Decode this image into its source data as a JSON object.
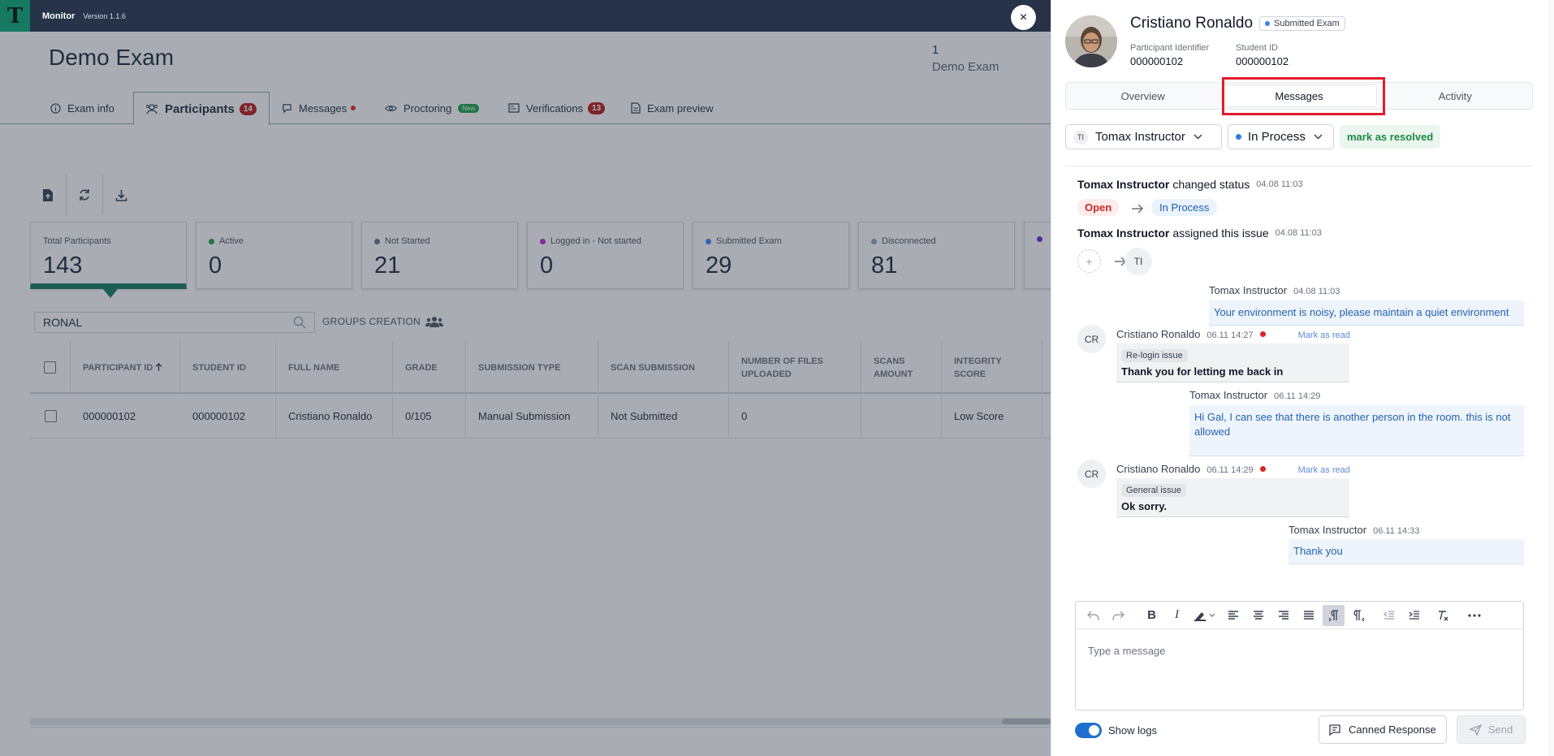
{
  "app": {
    "name": "Monitor",
    "version": "Version 1.1.6",
    "logo_letter": "T"
  },
  "exam": {
    "title": "Demo Exam",
    "number": "1",
    "subtitle": "Demo Exam"
  },
  "tabs": [
    {
      "label": "Exam info",
      "icon": "info-icon"
    },
    {
      "label": "Participants",
      "icon": "participants-icon",
      "badge": "14"
    },
    {
      "label": "Messages",
      "icon": "chat-icon",
      "dot": true
    },
    {
      "label": "Proctoring",
      "icon": "eye-icon",
      "badge": "New"
    },
    {
      "label": "Verifications",
      "icon": "id-card-icon",
      "badge": "13"
    },
    {
      "label": "Exam preview",
      "icon": "document-icon"
    }
  ],
  "toolbar": [
    "file-upload-icon",
    "refresh-icon",
    "download-icon"
  ],
  "cards": [
    {
      "label": "Total Participants",
      "value": "143"
    },
    {
      "label": "Active",
      "value": "0",
      "color": "#22a04b"
    },
    {
      "label": "Not Started",
      "value": "21",
      "color": "#6b7280"
    },
    {
      "label": "Logged in - Not started",
      "value": "0",
      "color": "#c026d3"
    },
    {
      "label": "Submitted Exam",
      "value": "29",
      "color": "#3b82f6"
    },
    {
      "label": "Disconnected",
      "value": "81",
      "color": "#8aa0c8"
    }
  ],
  "search": {
    "value": "RONAL",
    "groups_label": "GROUPS CREATION"
  },
  "table": {
    "headers": [
      "PARTICIPANT ID",
      "STUDENT ID",
      "FULL NAME",
      "GRADE",
      "SUBMISSION TYPE",
      "SCAN SUBMISSION",
      "NUMBER OF FILES UPLOADED",
      "SCANS AMOUNT",
      "INTEGRITY SCORE"
    ],
    "rows": [
      [
        "000000102",
        "000000102",
        "Cristiano Ronaldo",
        "0/105",
        "Manual Submission",
        "Not Submitted",
        "0",
        "",
        "Low Score"
      ]
    ]
  },
  "panel": {
    "name": "Cristiano Ronaldo",
    "status": "Submitted Exam",
    "participant_identifier_label": "Participant Identifier",
    "participant_identifier": "000000102",
    "student_id_label": "Student ID",
    "student_id": "000000102",
    "tabs": [
      "Overview",
      "Messages",
      "Activity"
    ],
    "assignee": {
      "initials": "TI",
      "name": "Tomax Instructor"
    },
    "state": "In Process",
    "resolve_label": "mark as resolved",
    "logs": [
      {
        "actor": "Tomax Instructor",
        "action": "changed status",
        "time": "04.08 11:03",
        "from": "Open",
        "to": "In Process"
      },
      {
        "actor": "Tomax Instructor",
        "action": "assigned this issue",
        "time": "04.08 11:03",
        "to_initials": "TI"
      }
    ],
    "messages": [
      {
        "author": "Tomax Instructor",
        "time": "04.08 11:03",
        "text": "Your environment is noisy, please maintain a quiet environment"
      },
      {
        "author": "Cristiano Ronaldo",
        "initials": "CR",
        "time": "06.11 14:27",
        "tag": "Re-login issue",
        "text": "Thank you for letting me back in",
        "mark": "Mark as read"
      },
      {
        "author": "Tomax Instructor",
        "time": "06.11 14:29",
        "text": "Hi Gal, I can see that there is another person in the room. this is not allowed"
      },
      {
        "author": "Cristiano Ronaldo",
        "initials": "CR",
        "time": "06.11 14:29",
        "tag": "General issue",
        "text": "Ok sorry.",
        "mark": "Mark as read"
      },
      {
        "author": "Tomax Instructor",
        "time": "06.11 14:33",
        "text": "Thank you"
      }
    ],
    "editor_placeholder": "Type a message",
    "show_logs": "Show logs",
    "canned_label": "Canned Response",
    "send_label": "Send"
  },
  "close_symbol": "×"
}
